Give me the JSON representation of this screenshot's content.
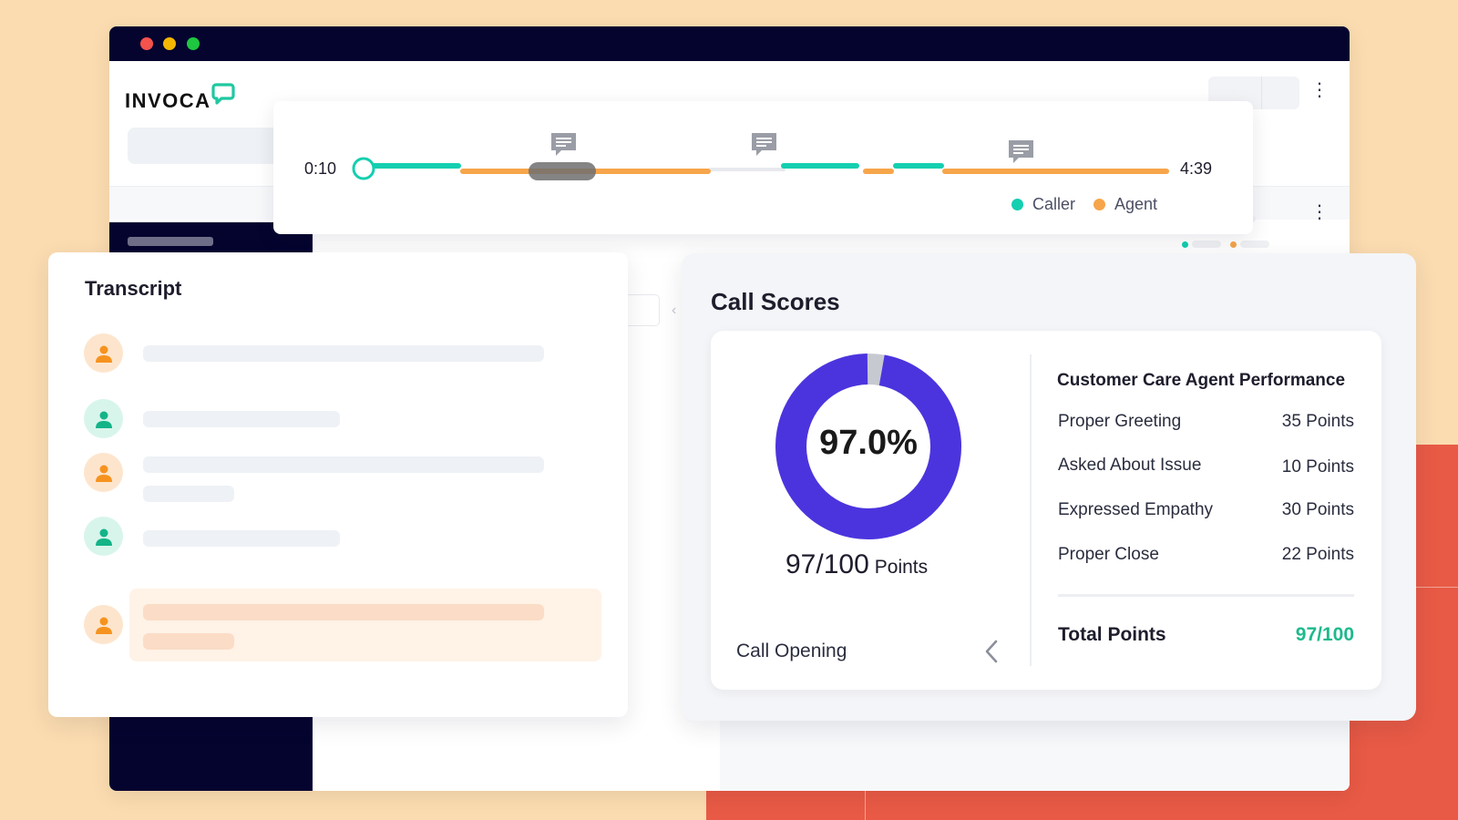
{
  "brand": {
    "name": "INVOCA",
    "accent": "#1fc8a0"
  },
  "colors": {
    "caller": "#14cfb0",
    "agent": "#f6a54a",
    "donut": "#4b34de",
    "total": "#1eb98c"
  },
  "timeline": {
    "start_time": "0:10",
    "end_time": "4:39",
    "legend": [
      {
        "label": "Caller",
        "color": "#14cfb0"
      },
      {
        "label": "Agent",
        "color": "#f6a54a"
      }
    ]
  },
  "transcript": {
    "title": "Transcript",
    "rows": [
      {
        "speaker": "agent"
      },
      {
        "speaker": "caller"
      },
      {
        "speaker": "agent"
      },
      {
        "speaker": "caller"
      },
      {
        "speaker": "agent",
        "highlighted": true
      }
    ]
  },
  "call_scores": {
    "title": "Call Scores",
    "percent_label": "97.0%",
    "score_fraction": 0.97,
    "points_value": "97/100",
    "points_unit": "Points",
    "section_label": "Call Opening",
    "performance": {
      "title": "Customer Care Agent Performance",
      "items": [
        {
          "label": "Proper Greeting",
          "value": "35 Points"
        },
        {
          "label": "Asked About Issue",
          "value": "10 Points"
        },
        {
          "label": "Expressed Empathy",
          "value": "30 Points"
        },
        {
          "label": "Proper Close",
          "value": "22 Points"
        }
      ],
      "total_label": "Total Points",
      "total_value": "97/100"
    }
  }
}
